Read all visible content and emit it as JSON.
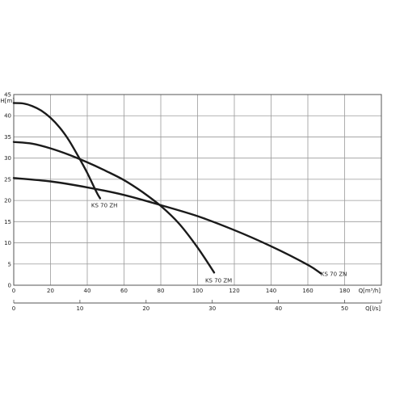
{
  "chart_data": {
    "type": "line",
    "ylabel": "H[m]",
    "xlabel": "Q[m³/h]",
    "x2label": "Q[l/s]",
    "xlim": [
      0,
      200
    ],
    "ylim": [
      0,
      45
    ],
    "x2lim": [
      0,
      55.556
    ],
    "xticks": [
      0,
      20,
      40,
      60,
      80,
      100,
      120,
      140,
      160,
      180
    ],
    "yticks": [
      0,
      5,
      10,
      15,
      20,
      25,
      30,
      35,
      40,
      45
    ],
    "x2ticks": [
      0,
      10,
      20,
      30,
      40,
      50
    ],
    "grid": true,
    "series": [
      {
        "name": "KS 70 ZH",
        "x": [
          0,
          5,
          10,
          15,
          20,
          25,
          30,
          35,
          40,
          45,
          47
        ],
        "y": [
          43,
          42.9,
          42.3,
          41.2,
          39.5,
          37.2,
          34.2,
          30.5,
          26.5,
          22,
          20.5
        ]
      },
      {
        "name": "KS 70 ZM",
        "x": [
          0,
          10,
          20,
          30,
          40,
          50,
          60,
          70,
          80,
          90,
          100,
          109
        ],
        "y": [
          33.8,
          33.4,
          32.3,
          30.8,
          29,
          27,
          24.8,
          22,
          18.7,
          14.5,
          8.9,
          3
        ]
      },
      {
        "name": "KS 70 ZN",
        "x": [
          0,
          20,
          40,
          60,
          80,
          100,
          120,
          140,
          160,
          167
        ],
        "y": [
          25.3,
          24.5,
          23.1,
          21.3,
          18.9,
          16.3,
          13,
          9.2,
          4.8,
          2.8
        ]
      }
    ]
  }
}
